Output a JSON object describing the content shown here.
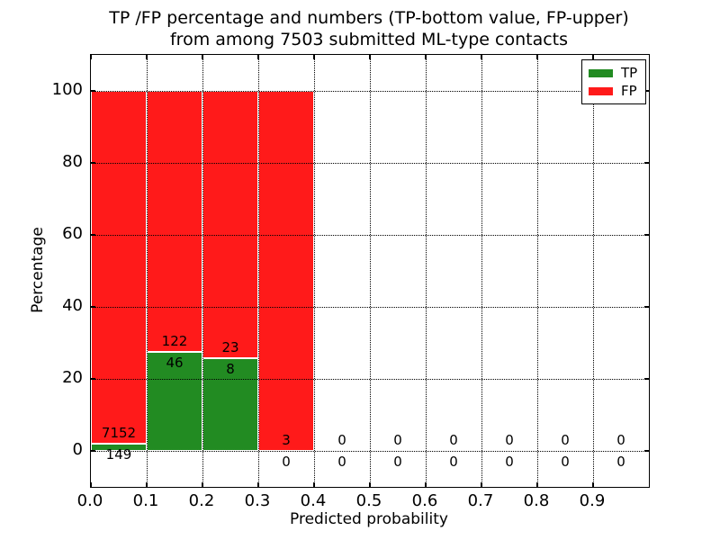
{
  "title": {
    "line1": "TP /FP percentage and numbers (TP-bottom value, FP-upper)",
    "line2": "from among 7503 submitted ML-type contacts"
  },
  "axes": {
    "xlabel": "Predicted probability",
    "ylabel": "Percentage",
    "xtick_labels": [
      "0.0",
      "0.1",
      "0.2",
      "0.3",
      "0.4",
      "0.5",
      "0.6",
      "0.7",
      "0.8",
      "0.9"
    ],
    "ytick_labels": [
      "0",
      "20",
      "40",
      "60",
      "80",
      "100"
    ],
    "ytick_values": [
      0,
      20,
      40,
      60,
      80,
      100
    ]
  },
  "legend": {
    "entries": [
      {
        "label": "TP",
        "color": "#228b22"
      },
      {
        "label": "FP",
        "color": "#ff1a1a"
      }
    ],
    "position": "upper right"
  },
  "chart_data": {
    "type": "bar",
    "stacked": true,
    "normalized": "each non-empty bin stacks to 100%",
    "title": "TP /FP percentage and numbers (TP-bottom value, FP-upper) from among 7503 submitted ML-type contacts",
    "xlabel": "Predicted probability",
    "ylabel": "Percentage",
    "xlim": [
      0.0,
      1.0
    ],
    "ylim": [
      -10,
      110
    ],
    "grid": true,
    "legend_position": "upper right",
    "total_contacts": 7503,
    "colors": {
      "tp": "#228b22",
      "fp": "#ff1a1a"
    },
    "bin_width": 0.1,
    "categories": [
      "0.0-0.1",
      "0.1-0.2",
      "0.2-0.3",
      "0.3-0.4",
      "0.4-0.5",
      "0.5-0.6",
      "0.6-0.7",
      "0.7-0.8",
      "0.8-0.9",
      "0.9-1.0"
    ],
    "series": [
      {
        "name": "TP",
        "counts": [
          149,
          46,
          8,
          0,
          0,
          0,
          0,
          0,
          0,
          0
        ]
      },
      {
        "name": "FP",
        "counts": [
          7152,
          122,
          23,
          3,
          0,
          0,
          0,
          0,
          0,
          0
        ]
      }
    ],
    "bins": [
      {
        "x_start": 0.0,
        "tp": 149,
        "fp": 7152,
        "tp_pct": 2.04,
        "stack_top_pct": 100
      },
      {
        "x_start": 0.1,
        "tp": 46,
        "fp": 122,
        "tp_pct": 27.38,
        "stack_top_pct": 100
      },
      {
        "x_start": 0.2,
        "tp": 8,
        "fp": 23,
        "tp_pct": 25.81,
        "stack_top_pct": 100
      },
      {
        "x_start": 0.3,
        "tp": 0,
        "fp": 3,
        "tp_pct": 0,
        "stack_top_pct": 100
      },
      {
        "x_start": 0.4,
        "tp": 0,
        "fp": 0,
        "tp_pct": 0,
        "stack_top_pct": 0
      },
      {
        "x_start": 0.5,
        "tp": 0,
        "fp": 0,
        "tp_pct": 0,
        "stack_top_pct": 0
      },
      {
        "x_start": 0.6,
        "tp": 0,
        "fp": 0,
        "tp_pct": 0,
        "stack_top_pct": 0
      },
      {
        "x_start": 0.7,
        "tp": 0,
        "fp": 0,
        "tp_pct": 0,
        "stack_top_pct": 0
      },
      {
        "x_start": 0.8,
        "tp": 0,
        "fp": 0,
        "tp_pct": 0,
        "stack_top_pct": 0
      },
      {
        "x_start": 0.9,
        "tp": 0,
        "fp": 0,
        "tp_pct": 0,
        "stack_top_pct": 0
      }
    ]
  }
}
